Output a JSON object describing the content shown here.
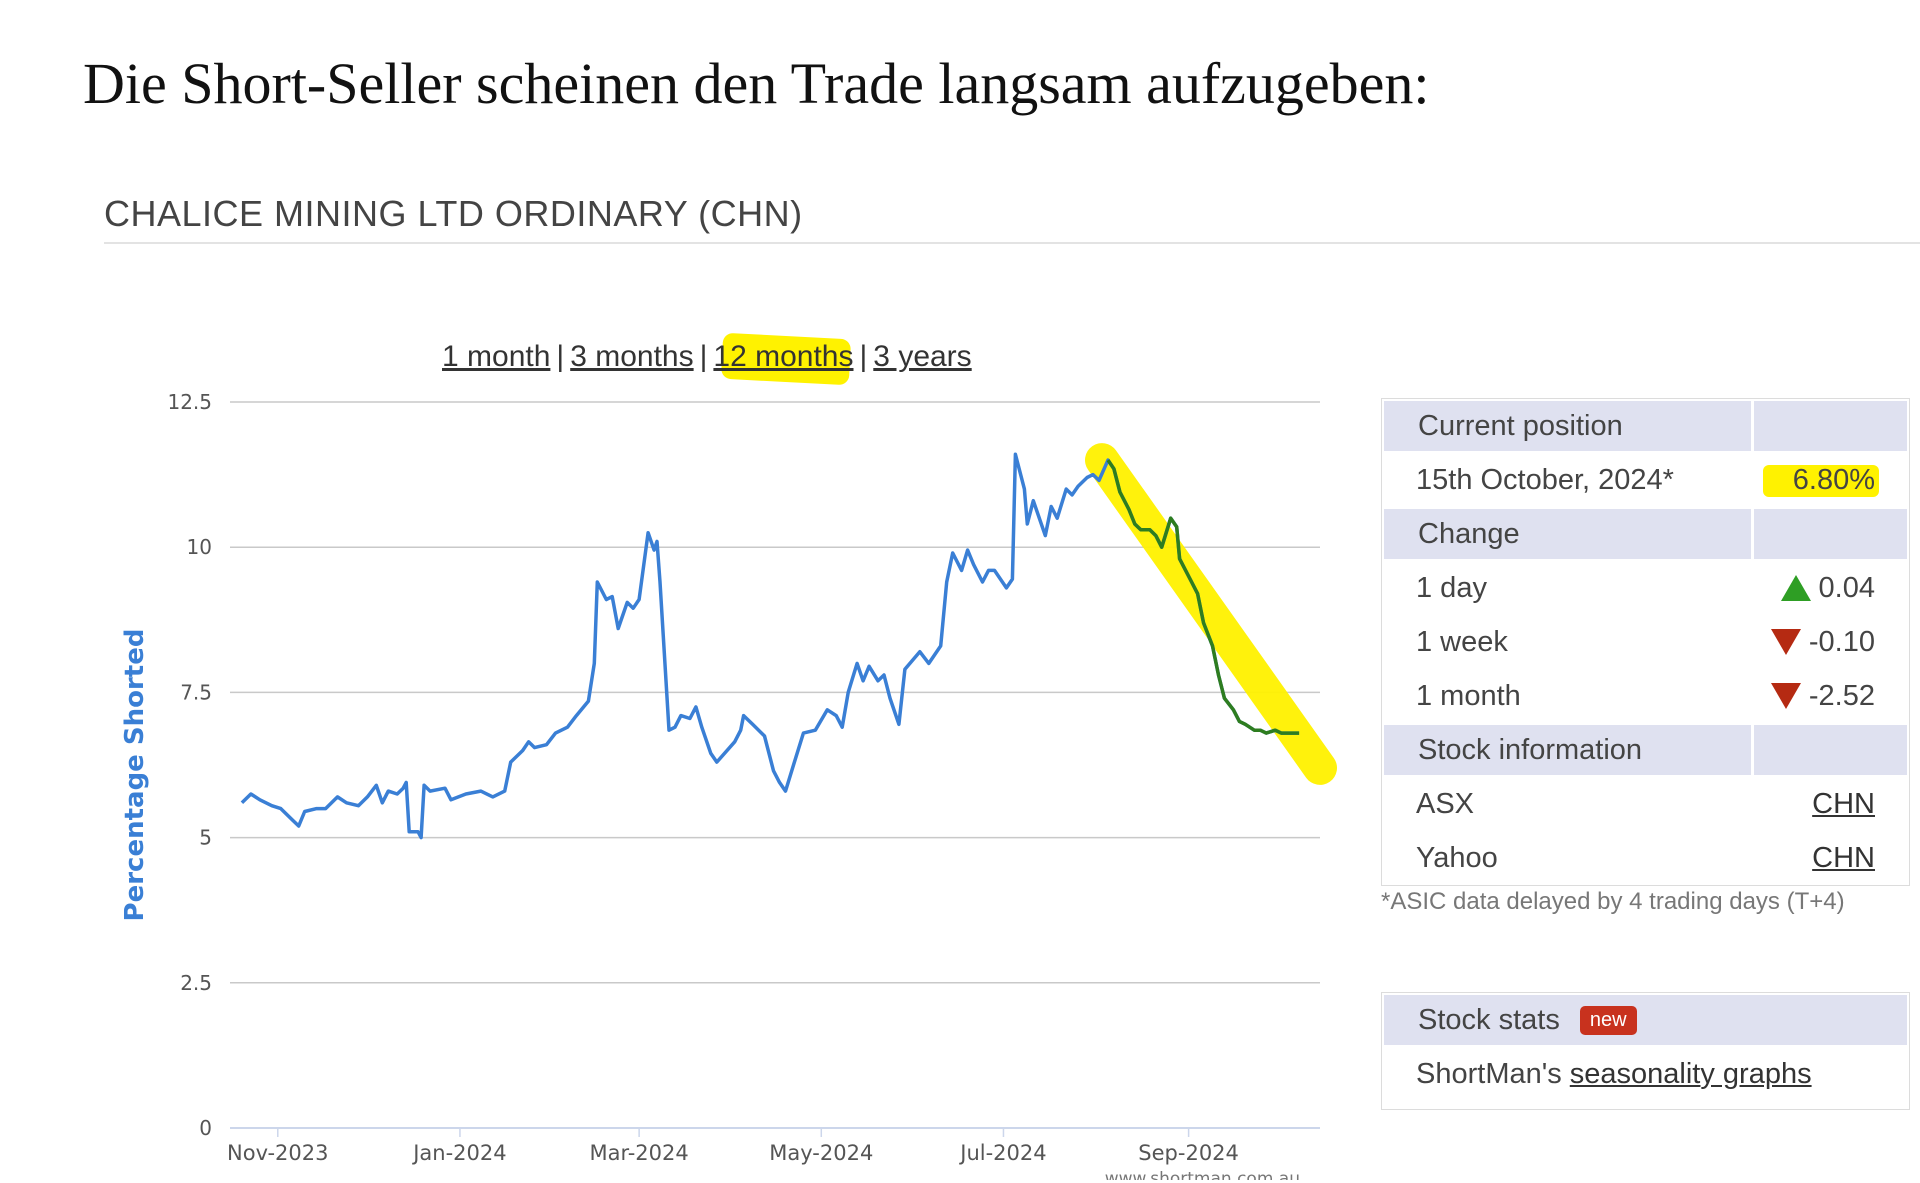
{
  "headline": "Die Short-Seller scheinen den Trade langsam aufzugeben:",
  "stock_title": "CHALICE MINING LTD ORDINARY (CHN)",
  "range_nav": {
    "items": [
      "1 month",
      "3 months",
      "12 months",
      "3 years"
    ],
    "separator": "|",
    "selected": "12 months"
  },
  "info_table": {
    "current_position_header": "Current position",
    "date_label": "15th October, 2024*",
    "current_value": "6.80%",
    "change_header": "Change",
    "changes": [
      {
        "label": "1 day",
        "value": "0.04",
        "direction": "up"
      },
      {
        "label": "1 week",
        "value": "-0.10",
        "direction": "down"
      },
      {
        "label": "1 month",
        "value": "-2.52",
        "direction": "down"
      }
    ],
    "stock_info_header": "Stock information",
    "links": [
      {
        "label": "ASX",
        "value": "CHN"
      },
      {
        "label": "Yahoo",
        "value": "CHN"
      }
    ]
  },
  "footnote": "*ASIC data delayed by 4 trading days (T+4)",
  "stats_box": {
    "title": "Stock stats",
    "badge": "new",
    "prefix": "ShortMan's",
    "link": "seasonality graphs"
  },
  "colors": {
    "line": "#3a7fd5",
    "highlight": "#fff200",
    "trend_segment": "#2e7d1f",
    "grid": "#c9c9c9",
    "ylabel": "#3a7fd5"
  },
  "chart_data": {
    "type": "line",
    "title": "",
    "xlabel": "",
    "ylabel": "Percentage Shorted",
    "ylim": [
      0,
      12.5
    ],
    "yticks": [
      "0",
      "2.5",
      "5",
      "7.5",
      "10",
      "12.5"
    ],
    "xlim": [
      "2023-10-16",
      "2024-10-15"
    ],
    "xticks": [
      {
        "label": "Nov-2023",
        "date": "2023-11-01"
      },
      {
        "label": "Jan-2024",
        "date": "2024-01-01"
      },
      {
        "label": "Mar-2024",
        "date": "2024-03-01"
      },
      {
        "label": "May-2024",
        "date": "2024-05-01"
      },
      {
        "label": "Jul-2024",
        "date": "2024-07-01"
      },
      {
        "label": "Sep-2024",
        "date": "2024-09-01"
      }
    ],
    "credit": "www.shortman.com.au",
    "grid": true,
    "series": [
      {
        "points": [
          [
            "2023-10-20",
            5.6
          ],
          [
            "2023-10-23",
            5.75
          ],
          [
            "2023-10-26",
            5.65
          ],
          [
            "2023-10-30",
            5.55
          ],
          [
            "2023-11-02",
            5.5
          ],
          [
            "2023-11-06",
            5.3
          ],
          [
            "2023-11-08",
            5.2
          ],
          [
            "2023-11-10",
            5.45
          ],
          [
            "2023-11-14",
            5.5
          ],
          [
            "2023-11-17",
            5.5
          ],
          [
            "2023-11-21",
            5.7
          ],
          [
            "2023-11-24",
            5.6
          ],
          [
            "2023-11-28",
            5.55
          ],
          [
            "2023-12-01",
            5.7
          ],
          [
            "2023-12-04",
            5.9
          ],
          [
            "2023-12-06",
            5.6
          ],
          [
            "2023-12-08",
            5.8
          ],
          [
            "2023-12-11",
            5.75
          ],
          [
            "2023-12-13",
            5.85
          ],
          [
            "2023-12-14",
            5.95
          ],
          [
            "2023-12-15",
            5.1
          ],
          [
            "2023-12-18",
            5.1
          ],
          [
            "2023-12-19",
            5.0
          ],
          [
            "2023-12-20",
            5.9
          ],
          [
            "2023-12-22",
            5.8
          ],
          [
            "2023-12-27",
            5.85
          ],
          [
            "2023-12-29",
            5.65
          ],
          [
            "2024-01-03",
            5.75
          ],
          [
            "2024-01-08",
            5.8
          ],
          [
            "2024-01-12",
            5.7
          ],
          [
            "2024-01-16",
            5.8
          ],
          [
            "2024-01-18",
            6.3
          ],
          [
            "2024-01-22",
            6.5
          ],
          [
            "2024-01-24",
            6.65
          ],
          [
            "2024-01-26",
            6.55
          ],
          [
            "2024-01-30",
            6.6
          ],
          [
            "2024-02-02",
            6.8
          ],
          [
            "2024-02-06",
            6.9
          ],
          [
            "2024-02-09",
            7.1
          ],
          [
            "2024-02-13",
            7.35
          ],
          [
            "2024-02-15",
            8.0
          ],
          [
            "2024-02-16",
            9.4
          ],
          [
            "2024-02-19",
            9.1
          ],
          [
            "2024-02-21",
            9.15
          ],
          [
            "2024-02-23",
            8.6
          ],
          [
            "2024-02-26",
            9.05
          ],
          [
            "2024-02-28",
            8.95
          ],
          [
            "2024-03-01",
            9.1
          ],
          [
            "2024-03-04",
            10.25
          ],
          [
            "2024-03-06",
            9.95
          ],
          [
            "2024-03-07",
            10.1
          ],
          [
            "2024-03-08",
            9.4
          ],
          [
            "2024-03-11",
            6.85
          ],
          [
            "2024-03-13",
            6.9
          ],
          [
            "2024-03-15",
            7.1
          ],
          [
            "2024-03-18",
            7.05
          ],
          [
            "2024-03-20",
            7.25
          ],
          [
            "2024-03-22",
            6.9
          ],
          [
            "2024-03-25",
            6.45
          ],
          [
            "2024-03-27",
            6.3
          ],
          [
            "2024-04-02",
            6.65
          ],
          [
            "2024-04-04",
            6.85
          ],
          [
            "2024-04-05",
            7.1
          ],
          [
            "2024-04-08",
            6.95
          ],
          [
            "2024-04-12",
            6.75
          ],
          [
            "2024-04-15",
            6.15
          ],
          [
            "2024-04-17",
            5.95
          ],
          [
            "2024-04-19",
            5.8
          ],
          [
            "2024-04-22",
            6.3
          ],
          [
            "2024-04-25",
            6.8
          ],
          [
            "2024-04-29",
            6.85
          ],
          [
            "2024-05-03",
            7.2
          ],
          [
            "2024-05-06",
            7.1
          ],
          [
            "2024-05-08",
            6.9
          ],
          [
            "2024-05-10",
            7.5
          ],
          [
            "2024-05-13",
            8.0
          ],
          [
            "2024-05-15",
            7.7
          ],
          [
            "2024-05-17",
            7.95
          ],
          [
            "2024-05-20",
            7.7
          ],
          [
            "2024-05-22",
            7.8
          ],
          [
            "2024-05-24",
            7.4
          ],
          [
            "2024-05-27",
            6.95
          ],
          [
            "2024-05-29",
            7.9
          ],
          [
            "2024-06-03",
            8.2
          ],
          [
            "2024-06-06",
            8.0
          ],
          [
            "2024-06-10",
            8.3
          ],
          [
            "2024-06-12",
            9.4
          ],
          [
            "2024-06-14",
            9.9
          ],
          [
            "2024-06-17",
            9.6
          ],
          [
            "2024-06-19",
            9.95
          ],
          [
            "2024-06-21",
            9.7
          ],
          [
            "2024-06-24",
            9.4
          ],
          [
            "2024-06-26",
            9.6
          ],
          [
            "2024-06-28",
            9.6
          ],
          [
            "2024-07-02",
            9.3
          ],
          [
            "2024-07-04",
            9.45
          ],
          [
            "2024-07-05",
            11.6
          ],
          [
            "2024-07-08",
            11.0
          ],
          [
            "2024-07-09",
            10.4
          ],
          [
            "2024-07-11",
            10.8
          ],
          [
            "2024-07-15",
            10.2
          ],
          [
            "2024-07-17",
            10.7
          ],
          [
            "2024-07-19",
            10.5
          ],
          [
            "2024-07-22",
            11.0
          ],
          [
            "2024-07-24",
            10.9
          ],
          [
            "2024-07-26",
            11.05
          ],
          [
            "2024-07-29",
            11.2
          ],
          [
            "2024-07-31",
            11.25
          ],
          [
            "2024-08-02",
            11.15
          ],
          [
            "2024-08-05",
            11.5
          ],
          [
            "2024-08-07",
            11.35
          ],
          [
            "2024-08-09",
            10.95
          ],
          [
            "2024-08-12",
            10.65
          ],
          [
            "2024-08-14",
            10.4
          ],
          [
            "2024-08-16",
            10.3
          ],
          [
            "2024-08-19",
            10.3
          ],
          [
            "2024-08-21",
            10.2
          ],
          [
            "2024-08-23",
            10.0
          ],
          [
            "2024-08-26",
            10.5
          ],
          [
            "2024-08-28",
            10.35
          ],
          [
            "2024-08-29",
            9.8
          ],
          [
            "2024-09-02",
            9.4
          ],
          [
            "2024-09-04",
            9.2
          ],
          [
            "2024-09-06",
            8.7
          ],
          [
            "2024-09-09",
            8.3
          ],
          [
            "2024-09-11",
            7.8
          ],
          [
            "2024-09-13",
            7.4
          ],
          [
            "2024-09-16",
            7.2
          ],
          [
            "2024-09-18",
            7.0
          ],
          [
            "2024-09-20",
            6.95
          ],
          [
            "2024-09-23",
            6.85
          ],
          [
            "2024-09-25",
            6.85
          ],
          [
            "2024-09-27",
            6.8
          ],
          [
            "2024-09-30",
            6.85
          ],
          [
            "2024-10-02",
            6.8
          ],
          [
            "2024-10-08",
            6.8
          ]
        ]
      }
    ],
    "annotations": [
      {
        "type": "highlight-band",
        "from": "2024-08-03",
        "to": "2024-10-15",
        "y_from": 11.5,
        "y_to": 6.2
      },
      {
        "type": "trend-overlay",
        "from": "2024-08-05",
        "to": "2024-10-08"
      }
    ]
  }
}
